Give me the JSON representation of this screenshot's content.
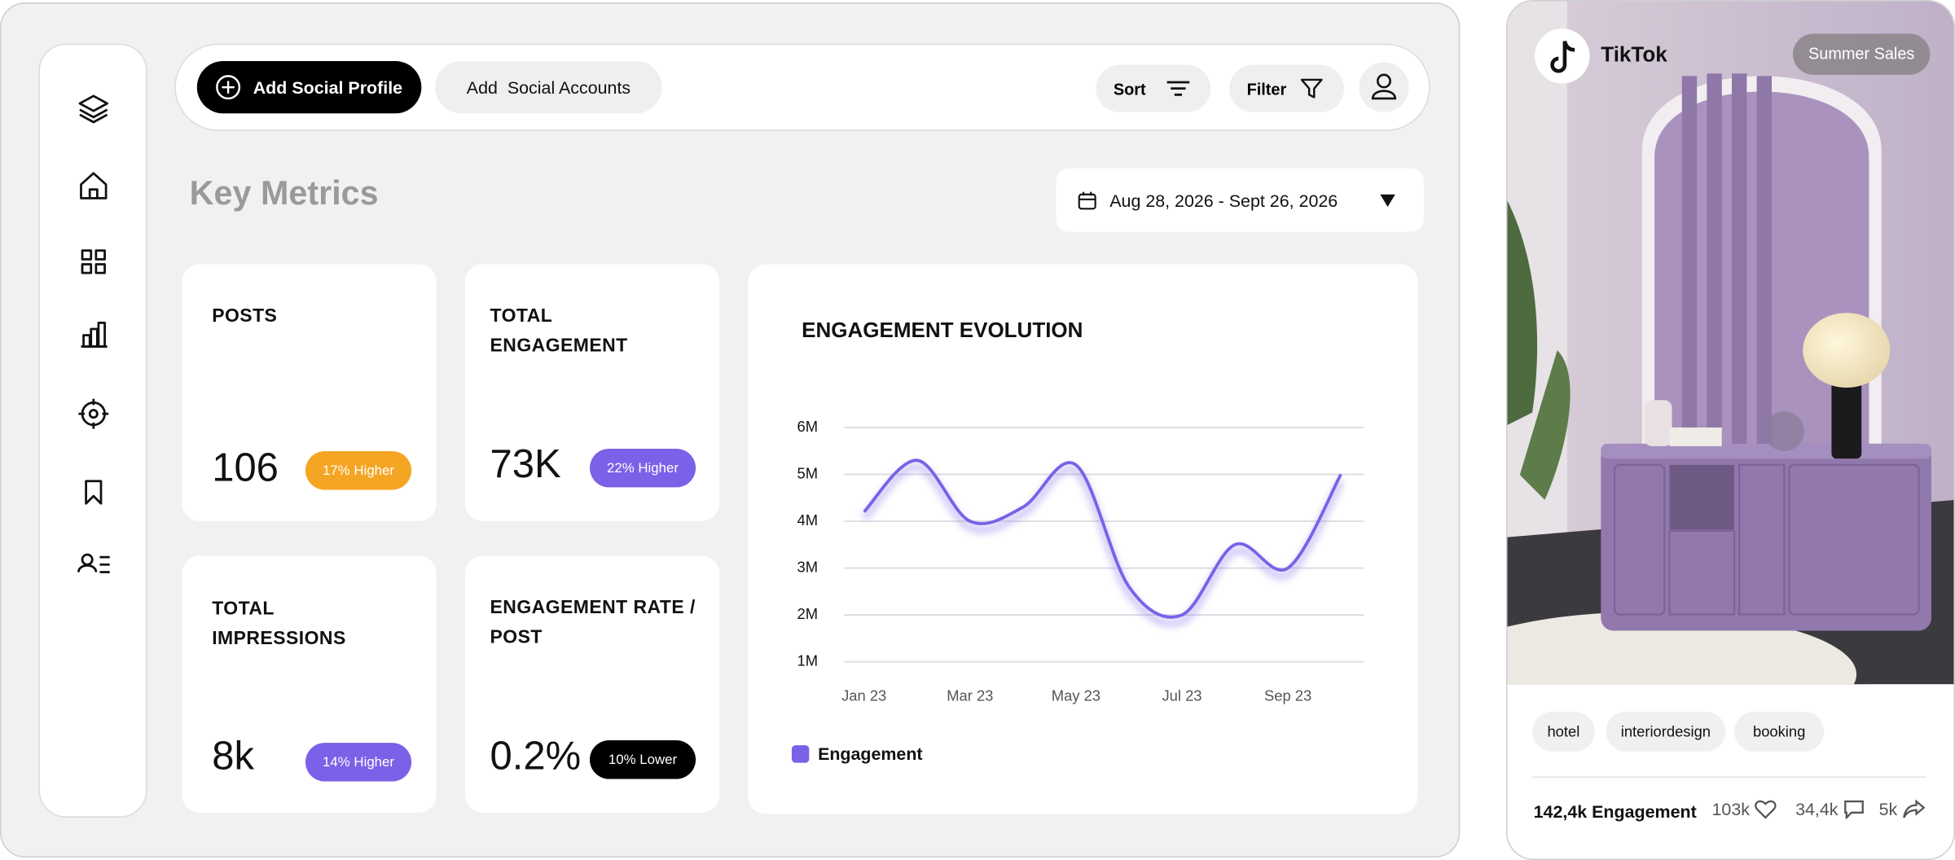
{
  "toolbar": {
    "add_profile": "Add Social Profile",
    "add_accounts": "Add  Social Accounts",
    "sort": "Sort",
    "filter": "Filter"
  },
  "section_title": "Key Metrics",
  "date_range": "Aug 28, 2026 - Sept 26, 2026",
  "metrics": [
    {
      "label": "POSTS",
      "value": "106",
      "badge": "17% Higher"
    },
    {
      "label": "TOTAL ENGAGEMENT",
      "value": "73K",
      "badge": "22% Higher"
    },
    {
      "label": "TOTAL IMPRESSIONS",
      "value": "8k",
      "badge": "14% Higher"
    },
    {
      "label": "ENGAGEMENT RATE / POST",
      "value": "0.2%",
      "badge": "10% Lower"
    }
  ],
  "chart_data": {
    "type": "line",
    "title": "ENGAGEMENT EVOLUTION",
    "categories": [
      "Jan 23",
      null,
      "Mar 23",
      null,
      "May 23",
      null,
      "Jul 23",
      null,
      "Sep 23",
      null
    ],
    "series": [
      {
        "name": "Engagement",
        "color": "#7b61e8",
        "values": [
          4.2,
          5.3,
          4.0,
          4.3,
          5.2,
          2.6,
          2.0,
          3.5,
          3.0,
          5.0
        ]
      }
    ],
    "ylim": [
      1,
      6
    ],
    "yticks": [
      {
        "value": 1,
        "label": "1M"
      },
      {
        "value": 2,
        "label": "2M"
      },
      {
        "value": 3,
        "label": "3M"
      },
      {
        "value": 4,
        "label": "4M"
      },
      {
        "value": 5,
        "label": "5M"
      },
      {
        "value": 6,
        "label": "6M"
      }
    ],
    "grid": true
  },
  "post": {
    "platform": "TikTok",
    "tag": "Summer Sales",
    "hashtags": [
      "hotel",
      "interiordesign",
      "booking"
    ],
    "engagement": "142,4k Engagement",
    "likes": "103k",
    "comments": "34,4k",
    "shares": "5k"
  }
}
